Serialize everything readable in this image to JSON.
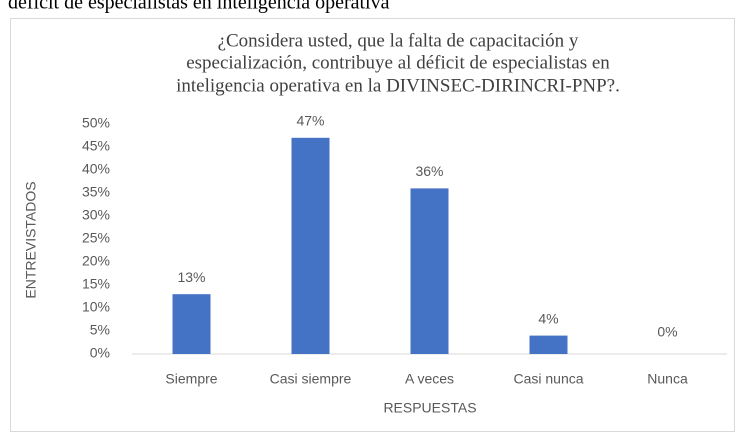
{
  "page_header": "déficit de especialistas en inteligencia operativa",
  "chart_data": {
    "type": "bar",
    "title_lines": [
      "¿Considera usted, que la falta de capacitación y",
      "especialización, contribuye al déficit de especialistas en",
      "inteligencia operativa en la DIVINSEC-DIRINCRI-PNP?."
    ],
    "categories": [
      "Siempre",
      "Casi siempre",
      "A veces",
      "Casi nunca",
      "Nunca"
    ],
    "values": [
      13,
      47,
      36,
      4,
      0
    ],
    "value_labels": [
      "13%",
      "47%",
      "36%",
      "4%",
      "0%"
    ],
    "color": "#4472c4",
    "ylabel": "ENTREVISTADOS",
    "xlabel": "RESPUESTAS",
    "ylim": [
      0,
      50
    ],
    "yticks": [
      {
        "value": 0,
        "label": "0%"
      },
      {
        "value": 5,
        "label": "5%"
      },
      {
        "value": 10,
        "label": "10%"
      },
      {
        "value": 15,
        "label": "15%"
      },
      {
        "value": 20,
        "label": "20%"
      },
      {
        "value": 25,
        "label": "25%"
      },
      {
        "value": 30,
        "label": "30%"
      },
      {
        "value": 35,
        "label": "35%"
      },
      {
        "value": 40,
        "label": "40%"
      },
      {
        "value": 45,
        "label": "45%"
      },
      {
        "value": 50,
        "label": "50%"
      }
    ],
    "grid": false
  }
}
